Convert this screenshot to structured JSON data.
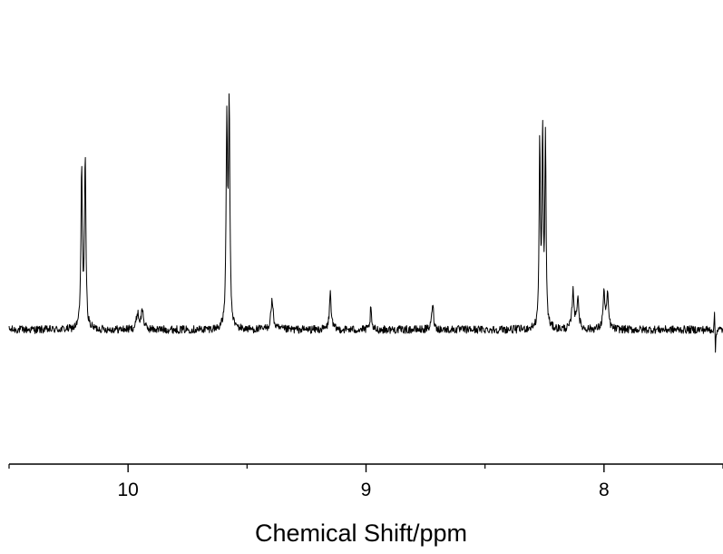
{
  "chart_data": {
    "type": "line",
    "title": "",
    "xlabel": "Chemical Shift/ppm",
    "ylabel": "",
    "xlim": [
      10.5,
      7.5
    ],
    "x_reversed": true,
    "y_axis_visible": false,
    "grid": false,
    "legend": "none",
    "x_major_ticks": [
      10,
      9,
      8
    ],
    "x_tick_labels": [
      "10",
      "9",
      "8"
    ],
    "x_minor_ticks": [
      10.5,
      9.5,
      8.5,
      7.5
    ],
    "baseline": 0.0,
    "noise_amplitude": 0.025,
    "line_color": "#000000",
    "series": [
      {
        "peaks": [
          {
            "ppm": 10.195,
            "height": 1.0,
            "width": 0.0035
          },
          {
            "ppm": 10.18,
            "height": 1.05,
            "width": 0.0035
          },
          {
            "ppm": 9.96,
            "height": 0.1,
            "width": 0.006
          },
          {
            "ppm": 9.94,
            "height": 0.12,
            "width": 0.006
          },
          {
            "ppm": 9.585,
            "height": 1.25,
            "width": 0.0035
          },
          {
            "ppm": 9.575,
            "height": 1.35,
            "width": 0.0035
          },
          {
            "ppm": 9.395,
            "height": 0.18,
            "width": 0.006
          },
          {
            "ppm": 9.15,
            "height": 0.23,
            "width": 0.0045
          },
          {
            "ppm": 8.98,
            "height": 0.14,
            "width": 0.003
          },
          {
            "ppm": 8.72,
            "height": 0.17,
            "width": 0.0045
          },
          {
            "ppm": 8.27,
            "height": 1.17,
            "width": 0.003
          },
          {
            "ppm": 8.258,
            "height": 1.22,
            "width": 0.003
          },
          {
            "ppm": 8.246,
            "height": 1.19,
            "width": 0.003
          },
          {
            "ppm": 8.13,
            "height": 0.24,
            "width": 0.005
          },
          {
            "ppm": 8.11,
            "height": 0.2,
            "width": 0.005
          },
          {
            "ppm": 8.0,
            "height": 0.22,
            "width": 0.005
          },
          {
            "ppm": 7.985,
            "height": 0.2,
            "width": 0.005
          },
          {
            "ppm": 7.535,
            "height": 0.15,
            "width": 0.0015
          },
          {
            "ppm": 7.532,
            "height": -0.18,
            "width": 0.0015
          }
        ]
      }
    ]
  }
}
